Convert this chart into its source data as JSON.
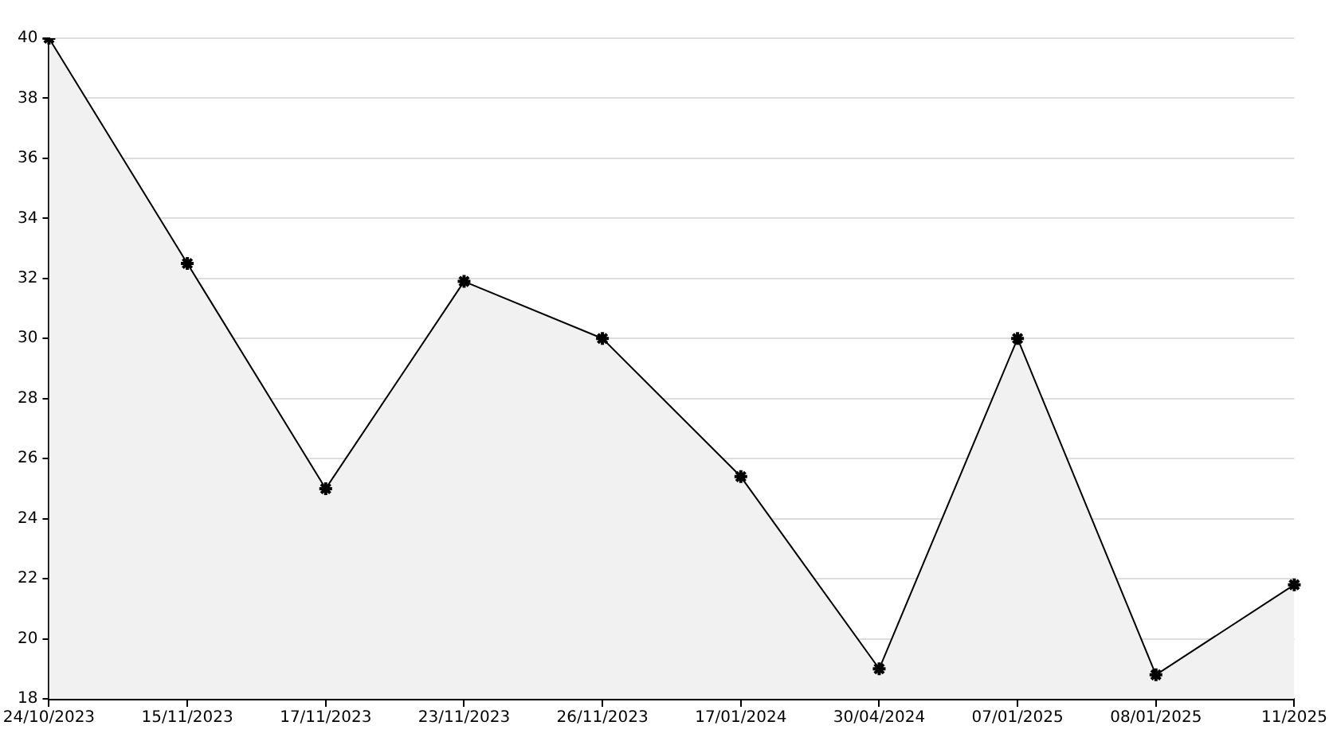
{
  "chart_data": {
    "type": "area",
    "categories": [
      "24/10/2023",
      "15/11/2023",
      "17/11/2023",
      "23/11/2023",
      "26/11/2023",
      "17/01/2024",
      "30/04/2024",
      "07/01/2025",
      "08/01/2025",
      "11/2025"
    ],
    "series": [
      {
        "color": "#000000",
        "values": [
          40,
          32.5,
          25,
          31.9,
          30,
          25.4,
          19,
          30,
          18.8,
          21.8
        ]
      }
    ],
    "ylim": [
      18,
      40
    ],
    "yticks": [
      18,
      20,
      22,
      24,
      26,
      28,
      30,
      32,
      34,
      36,
      38,
      40
    ],
    "grid": "y",
    "legend": false,
    "marker": "cross",
    "line_style": "solid"
  }
}
